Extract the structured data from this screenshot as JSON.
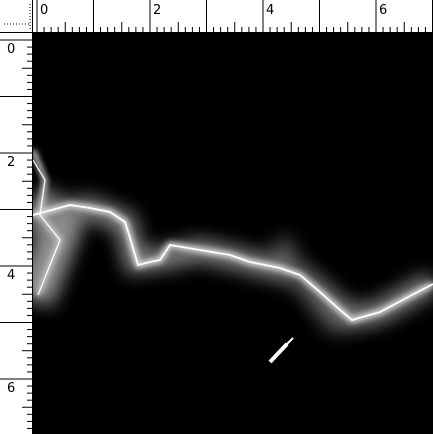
{
  "rulers": {
    "top": {
      "labels": [
        0,
        2,
        4,
        6
      ]
    },
    "left": {
      "labels": [
        0,
        2,
        4,
        6
      ]
    }
  }
}
